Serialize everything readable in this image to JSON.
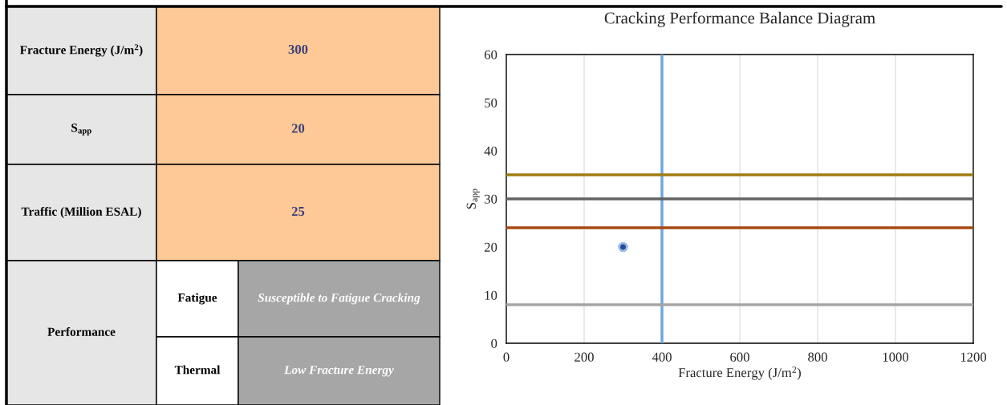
{
  "chart_data": [
    {
      "type": "other",
      "annotations": [
        "Fracture Energy (J/m$^{2}$)",
        "300",
        "S$_{app}$",
        "20",
        "Traffic (Million ESAL)",
        "25",
        "Performance",
        "Fatigue",
        "Susceptible to Fatigue Cracking",
        "Thermal",
        "Low Fracture Energy"
      ]
    },
    {
      "type": "scatter",
      "title": "Cracking Performance Balance Diagram",
      "xlabel": "Fracture Energy (J/m$^{2}$)",
      "ylabel": "S$_{app}$",
      "x": [
        300
      ],
      "values": [
        20
      ],
      "color": "#1f4e9c",
      "marker": "circle",
      "xlim": [
        0,
        1200
      ],
      "xticks": [
        0,
        200,
        400,
        600,
        800,
        1000,
        1200
      ],
      "ylim": [
        0,
        60
      ],
      "yticks": [
        0,
        10,
        20,
        30,
        40,
        50,
        60
      ],
      "grid": "x",
      "ref_lines": [
        {
          "axis": "x",
          "value": 400,
          "color": "#6fa8dc"
        },
        {
          "axis": "y",
          "value": 35,
          "color": "#a07c10"
        },
        {
          "axis": "y",
          "value": 30,
          "color": "#636363"
        },
        {
          "axis": "y",
          "value": 24,
          "color": "#a84a12"
        },
        {
          "axis": "y",
          "value": 8,
          "color": "#a5a5a5"
        }
      ]
    }
  ]
}
